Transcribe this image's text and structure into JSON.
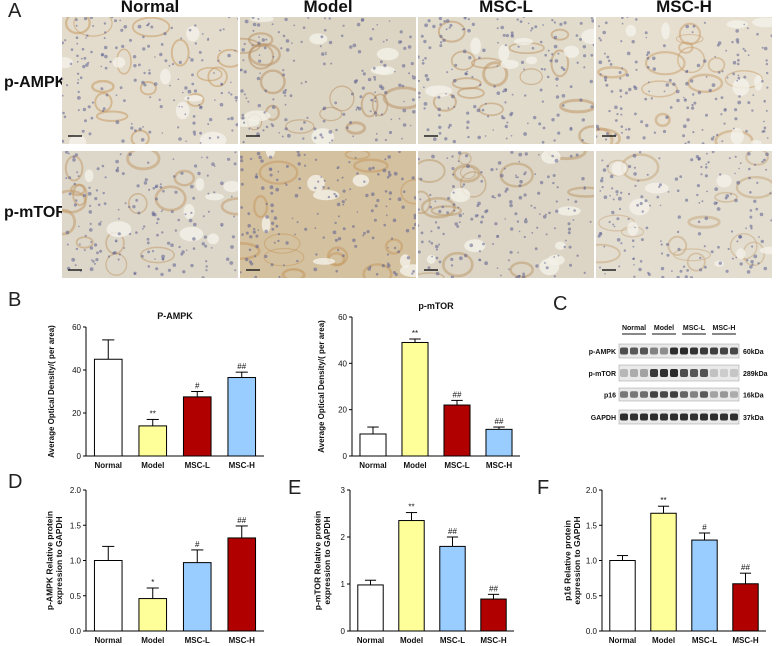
{
  "panel_letters": {
    "a": "A",
    "b": "B",
    "c": "C",
    "d": "D",
    "e": "E",
    "f": "F"
  },
  "histology": {
    "columns": [
      "Normal",
      "Model",
      "MSC-L",
      "MSC-H"
    ],
    "rows": [
      "p-AMPK",
      "p-mTOR"
    ]
  },
  "blot": {
    "groups": [
      "Normal",
      "Model",
      "MSC-L",
      "MSC-H"
    ],
    "rows": [
      {
        "protein": "p-AMPK",
        "size": "60kDa",
        "intensity": [
          0.75,
          0.7,
          0.72,
          0.5,
          0.45,
          0.9,
          0.92,
          0.88,
          0.85,
          0.82,
          0.8,
          0.78
        ]
      },
      {
        "protein": "p-mTOR",
        "size": "289kDa",
        "intensity": [
          0.25,
          0.3,
          0.35,
          0.85,
          0.9,
          0.92,
          0.75,
          0.7,
          0.72,
          0.2,
          0.15,
          0.18
        ]
      },
      {
        "protein": "p16",
        "size": "16kDa",
        "intensity": [
          0.55,
          0.55,
          0.6,
          0.8,
          0.78,
          0.82,
          0.65,
          0.5,
          0.7,
          0.35,
          0.4,
          0.3
        ]
      },
      {
        "protein": "GAPDH",
        "size": "37kDa",
        "intensity": [
          0.9,
          0.88,
          0.9,
          0.9,
          0.88,
          0.9,
          0.9,
          0.88,
          0.9,
          0.9,
          0.88,
          0.9
        ]
      }
    ]
  },
  "chart_data": [
    {
      "id": "pampk-iod",
      "type": "bar",
      "title": "P-AMPK",
      "ylabel": "Average Optical Density/( per area)",
      "ylim": [
        0,
        60
      ],
      "yticks": [
        0,
        20,
        40,
        60
      ],
      "categories": [
        "Normal",
        "Model",
        "MSC-L",
        "MSC-H"
      ],
      "values": [
        45,
        14,
        27.5,
        36.5
      ],
      "errors": [
        9,
        3,
        2.5,
        2.5
      ],
      "annotations": [
        "",
        "**",
        "#",
        "##"
      ],
      "colors": [
        "#ffffff",
        "#ffff99",
        "#b00000",
        "#99ccff"
      ]
    },
    {
      "id": "pmtor-iod",
      "type": "bar",
      "title": "p-mTOR",
      "ylabel": "Average Optical Density/( per area)",
      "ylim": [
        0,
        60
      ],
      "yticks": [
        0,
        20,
        40,
        60
      ],
      "categories": [
        "Normal",
        "Model",
        "MSC-L",
        "MSC-H"
      ],
      "values": [
        9.5,
        49,
        22,
        11.5
      ],
      "errors": [
        3,
        1.5,
        2,
        1
      ],
      "annotations": [
        "",
        "**",
        "##",
        "##"
      ],
      "colors": [
        "#ffffff",
        "#ffff99",
        "#b00000",
        "#99ccff"
      ]
    },
    {
      "id": "pampk-wb",
      "type": "bar",
      "title": "",
      "ylabel": "p-AMPK Relative protein expression to GAPDH",
      "ylim": [
        0,
        2.0
      ],
      "yticks": [
        0.0,
        0.5,
        1.0,
        1.5,
        2.0
      ],
      "categories": [
        "Normal",
        "Model",
        "MSC-L",
        "MSC-H"
      ],
      "values": [
        1.0,
        0.46,
        0.97,
        1.32
      ],
      "errors": [
        0.2,
        0.15,
        0.18,
        0.17
      ],
      "annotations": [
        "",
        "*",
        "#",
        "##"
      ],
      "colors": [
        "#ffffff",
        "#ffff99",
        "#99ccff",
        "#b00000"
      ]
    },
    {
      "id": "pmtor-wb",
      "type": "bar",
      "title": "",
      "ylabel": "p-mTOR Relative protein expression to GAPDH",
      "ylim": [
        0,
        3
      ],
      "yticks": [
        0,
        1,
        2,
        3
      ],
      "categories": [
        "Normal",
        "Model",
        "MSC-L",
        "MSC-H"
      ],
      "values": [
        0.98,
        2.35,
        1.8,
        0.68
      ],
      "errors": [
        0.1,
        0.17,
        0.2,
        0.1
      ],
      "annotations": [
        "",
        "**",
        "##",
        "##"
      ],
      "colors": [
        "#ffffff",
        "#ffff99",
        "#99ccff",
        "#b00000"
      ]
    },
    {
      "id": "p16-wb",
      "type": "bar",
      "title": "",
      "ylabel": "p16 Relative protein expression to GAPDH",
      "ylim": [
        0,
        2.0
      ],
      "yticks": [
        0.0,
        0.5,
        1.0,
        1.5,
        2.0
      ],
      "categories": [
        "Normal",
        "Model",
        "MSC-L",
        "MSC-H"
      ],
      "values": [
        1.0,
        1.67,
        1.29,
        0.67
      ],
      "errors": [
        0.07,
        0.1,
        0.1,
        0.15
      ],
      "annotations": [
        "",
        "**",
        "#",
        "##"
      ],
      "colors": [
        "#ffffff",
        "#ffff99",
        "#99ccff",
        "#b00000"
      ]
    }
  ]
}
